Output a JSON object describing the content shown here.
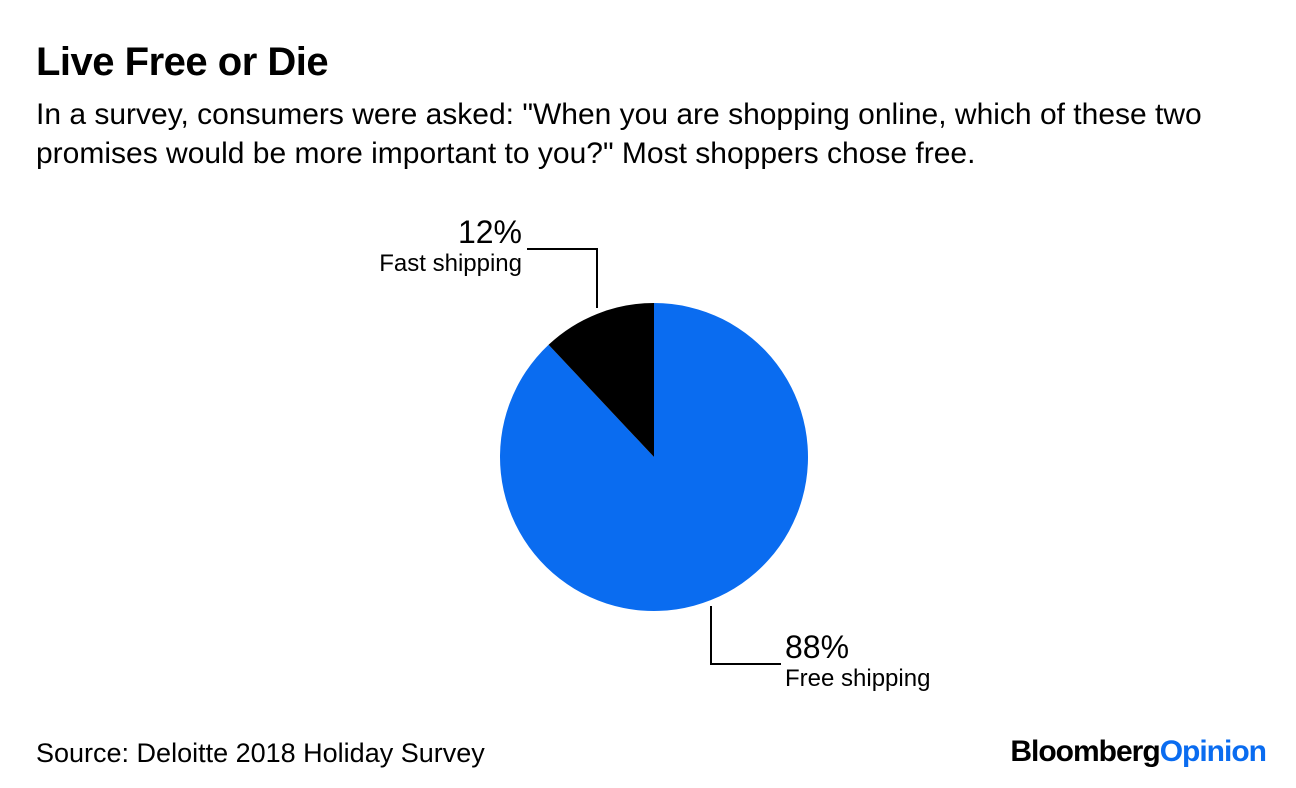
{
  "title": "Live Free or Die",
  "subtitle": "In a survey, consumers were asked: \"When you are shopping online, which of these two promises would be more important to you?\" Most shoppers chose free.",
  "source": "Source: Deloitte 2018 Holiday Survey",
  "logo": {
    "brand": "Bloomberg",
    "suffix": "Opinion"
  },
  "chart_data": {
    "type": "pie",
    "slices": [
      {
        "label": "Free shipping",
        "value": 88,
        "value_label": "88%",
        "color": "#0a6cf0"
      },
      {
        "label": "Fast shipping",
        "value": 12,
        "value_label": "12%",
        "color": "#000000"
      }
    ]
  }
}
